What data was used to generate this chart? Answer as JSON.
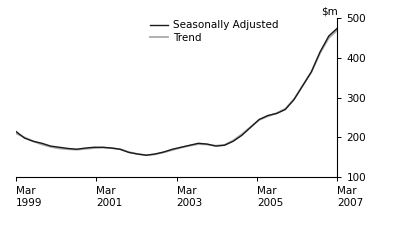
{
  "title": "",
  "ylim": [
    100,
    500
  ],
  "yticks": [
    100,
    200,
    300,
    400,
    500
  ],
  "xtick_labels": [
    "Mar\n1999",
    "Mar\n2001",
    "Mar\n2003",
    "Mar\n2005",
    "Mar\n2007"
  ],
  "xtick_positions": [
    0,
    8,
    16,
    24,
    32
  ],
  "seasonally_adjusted_color": "#1a1a1a",
  "trend_color": "#aaaaaa",
  "background_color": "#ffffff",
  "legend_labels": [
    "Seasonally Adjusted",
    "Trend"
  ],
  "sa_data": [
    215,
    198,
    190,
    185,
    178,
    175,
    172,
    170,
    173,
    175,
    175,
    173,
    170,
    162,
    158,
    155,
    158,
    163,
    170,
    175,
    180,
    185,
    183,
    178,
    180,
    190,
    205,
    225,
    245,
    255,
    260,
    270,
    295,
    330,
    365,
    415,
    455,
    475
  ],
  "trend_data": [
    210,
    200,
    190,
    182,
    176,
    172,
    170,
    169,
    171,
    173,
    174,
    173,
    170,
    163,
    158,
    155,
    157,
    162,
    168,
    174,
    179,
    183,
    182,
    179,
    181,
    192,
    208,
    226,
    244,
    253,
    261,
    272,
    296,
    330,
    364,
    412,
    450,
    470
  ]
}
